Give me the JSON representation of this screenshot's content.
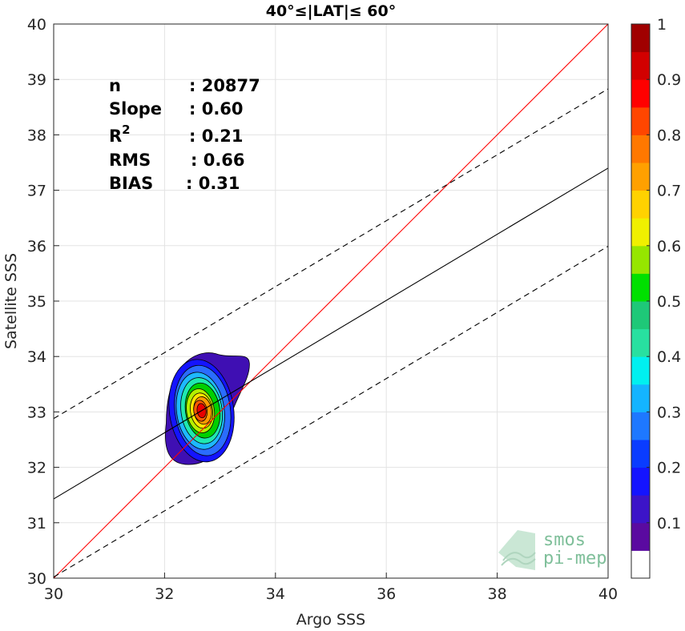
{
  "chart_data": {
    "type": "heatmap",
    "title": "40°≤|LAT|≤ 60°",
    "xlabel": "Argo SSS",
    "ylabel": "Satellite SSS",
    "xlim": [
      30,
      40
    ],
    "ylim": [
      30,
      40
    ],
    "xticks": [
      "30",
      "32",
      "34",
      "36",
      "38",
      "40"
    ],
    "yticks": [
      "30",
      "31",
      "32",
      "33",
      "34",
      "35",
      "36",
      "37",
      "38",
      "39",
      "40"
    ],
    "grid": true,
    "stats": [
      {
        "label": "n",
        "value": ": 20877"
      },
      {
        "label": "Slope",
        "value": ": 0.60"
      },
      {
        "label": "R2",
        "value": ": 0.21"
      },
      {
        "label": "RMS",
        "value": ": 0.66"
      },
      {
        "label": "BIAS",
        "value": ": 0.31"
      }
    ],
    "lines": {
      "identity": {
        "x": [
          30,
          40
        ],
        "y": [
          30,
          40
        ],
        "color": "#ff0000"
      },
      "fit": {
        "x": [
          30,
          40
        ],
        "y": [
          31.43,
          37.4
        ],
        "color": "#000000"
      },
      "fit_upper": {
        "x": [
          30,
          40
        ],
        "y": [
          32.88,
          38.83
        ],
        "color": "#000000",
        "dashed": true
      },
      "fit_lower": {
        "x": [
          30,
          40
        ],
        "y": [
          30.02,
          35.99
        ],
        "color": "#000000",
        "dashed": true
      }
    },
    "density": {
      "center": [
        32.65,
        33.0
      ],
      "levels": [
        {
          "level": 0.05,
          "rx": 0.62,
          "ry": 1.0,
          "color": "#3f0fb3"
        },
        {
          "level": 0.15,
          "rx": 0.58,
          "ry": 0.93,
          "color": "#1414ff"
        },
        {
          "level": 0.25,
          "rx": 0.5,
          "ry": 0.82,
          "color": "#2a6cff"
        },
        {
          "level": 0.35,
          "rx": 0.43,
          "ry": 0.7,
          "color": "#1eb8ff"
        },
        {
          "level": 0.45,
          "rx": 0.37,
          "ry": 0.6,
          "color": "#1fe8b0"
        },
        {
          "level": 0.55,
          "rx": 0.31,
          "ry": 0.5,
          "color": "#00d000"
        },
        {
          "level": 0.65,
          "rx": 0.25,
          "ry": 0.4,
          "color": "#b4f000"
        },
        {
          "level": 0.7,
          "rx": 0.2,
          "ry": 0.32,
          "color": "#ffe600"
        },
        {
          "level": 0.78,
          "rx": 0.16,
          "ry": 0.25,
          "color": "#ff9a00"
        },
        {
          "level": 0.85,
          "rx": 0.12,
          "ry": 0.19,
          "color": "#ff5a00"
        },
        {
          "level": 0.92,
          "rx": 0.08,
          "ry": 0.13,
          "color": "#e80000"
        }
      ]
    },
    "colorbar": {
      "ticks": [
        "0.1",
        "0.2",
        "0.3",
        "0.4",
        "0.5",
        "0.6",
        "0.7",
        "0.8",
        "0.9",
        "1"
      ],
      "colors": [
        "#ffffff",
        "#5a0aa0",
        "#3c14c8",
        "#1414ff",
        "#0a3cff",
        "#1e78ff",
        "#14b4ff",
        "#00f0f0",
        "#28e0a0",
        "#1ec878",
        "#00e000",
        "#96e600",
        "#f0f000",
        "#ffd200",
        "#ffa000",
        "#ff7800",
        "#ff4600",
        "#ff0000",
        "#d20000",
        "#a00000"
      ]
    }
  },
  "logo": {
    "line1": "smos",
    "line2": "pi-mep"
  }
}
